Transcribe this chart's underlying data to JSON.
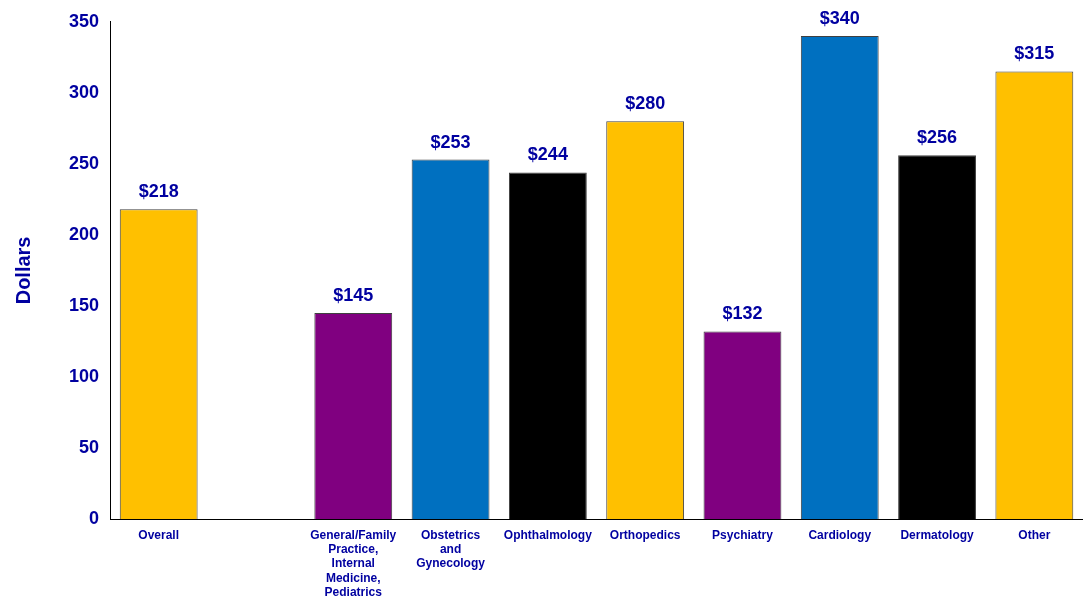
{
  "chart_data": {
    "type": "bar",
    "ylabel": "Dollars",
    "categories": [
      "Overall",
      null,
      "General/Family Practice, Internal Medicine, Pediatrics",
      "Obstetrics and Gynecology",
      "Ophthalmology",
      "Orthopedics",
      "Psychiatry",
      "Cardiology",
      "Dermatology",
      "Other"
    ],
    "values": [
      218,
      null,
      145,
      253,
      244,
      280,
      132,
      340,
      256,
      315
    ],
    "value_labels": [
      "$218",
      null,
      "$145",
      "$253",
      "$244",
      "$280",
      "$132",
      "$340",
      "$256",
      "$315"
    ],
    "colors": [
      "#ffc000",
      null,
      "#800080",
      "#0070c0",
      "#000000",
      "#ffc000",
      "#800080",
      "#0070c0",
      "#000000",
      "#ffc000"
    ],
    "ylim": [
      0,
      350
    ],
    "yticks": [
      0,
      50,
      100,
      150,
      200,
      250,
      300,
      350
    ],
    "grid": false,
    "legend": false
  }
}
